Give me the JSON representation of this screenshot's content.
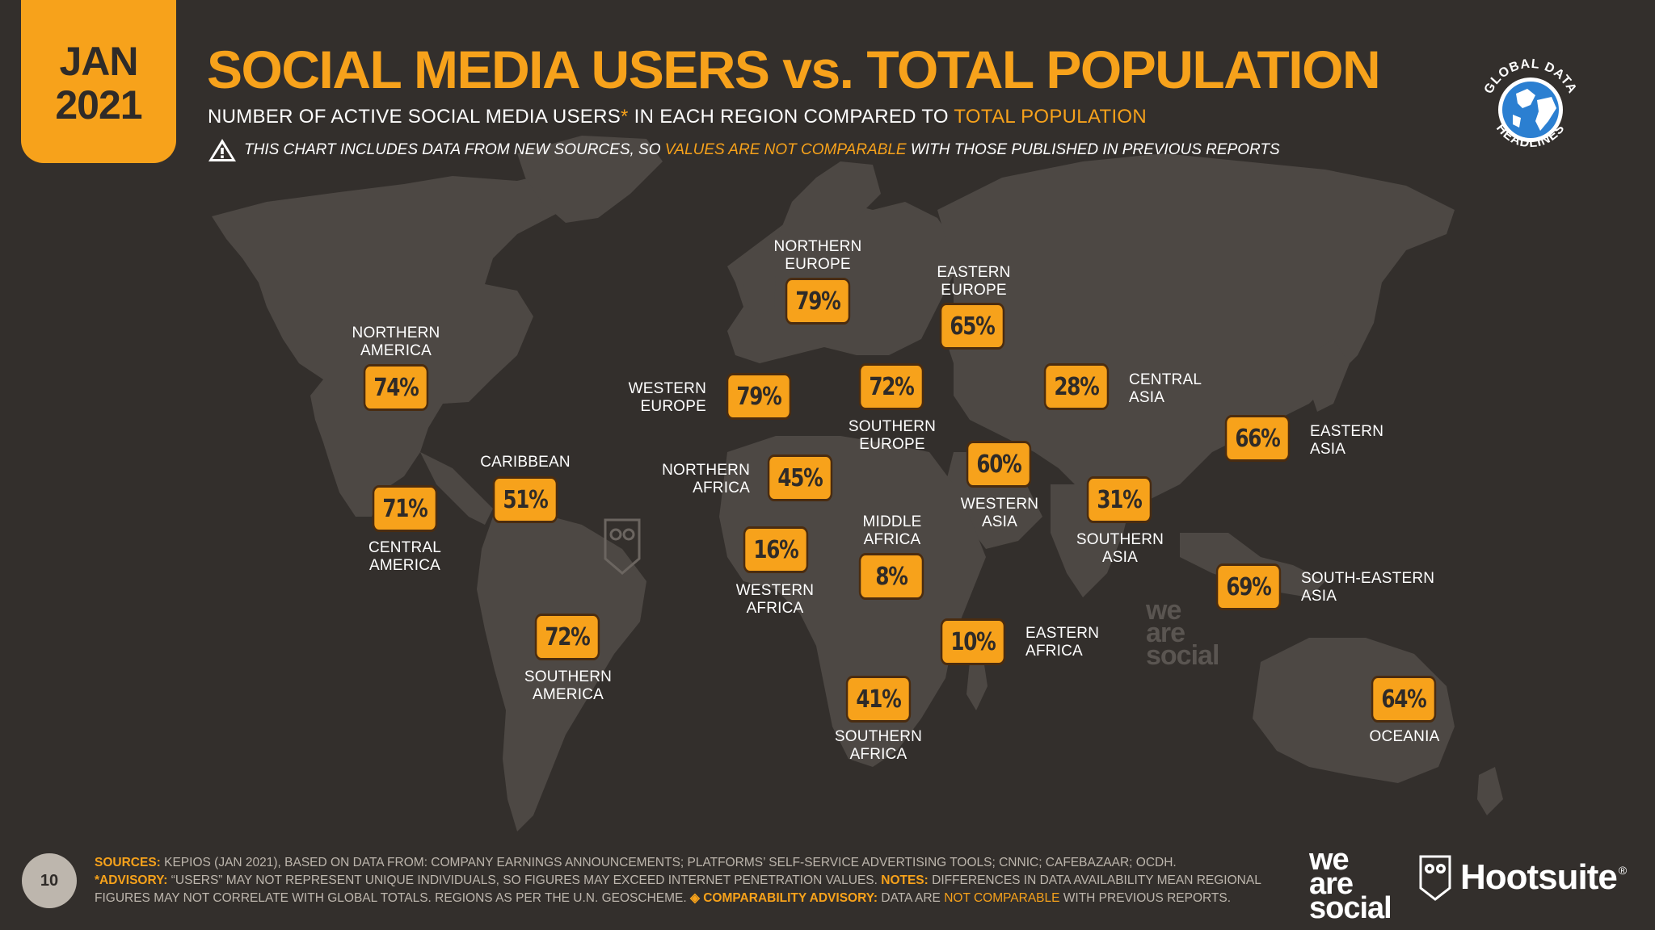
{
  "header": {
    "month": "JAN",
    "year": "2021",
    "title": "SOCIAL MEDIA USERS vs. TOTAL POPULATION",
    "subtitle_part1": "NUMBER OF ACTIVE SOCIAL MEDIA USERS",
    "subtitle_star": "*",
    "subtitle_part2": " IN EACH REGION COMPARED TO ",
    "subtitle_highlight": "TOTAL POPULATION",
    "warning_part1": "THIS CHART INCLUDES DATA FROM NEW SOURCES, SO ",
    "warning_highlight": "VALUES ARE NOT COMPARABLE",
    "warning_part2": " WITH THOSE PUBLISHED IN PREVIOUS REPORTS",
    "badge_top": "GLOBAL DATA",
    "badge_bottom": "HEADLINES"
  },
  "regions": [
    {
      "name": "NORTHERN\nAMERICA",
      "value": "74%"
    },
    {
      "name": "CENTRAL\nAMERICA",
      "value": "71%"
    },
    {
      "name": "CARIBBEAN",
      "value": "51%"
    },
    {
      "name": "SOUTHERN\nAMERICA",
      "value": "72%"
    },
    {
      "name": "NORTHERN\nEUROPE",
      "value": "79%"
    },
    {
      "name": "WESTERN\nEUROPE",
      "value": "79%"
    },
    {
      "name": "SOUTHERN\nEUROPE",
      "value": "72%"
    },
    {
      "name": "EASTERN\nEUROPE",
      "value": "65%"
    },
    {
      "name": "CENTRAL\nASIA",
      "value": "28%"
    },
    {
      "name": "NORTHERN\nAFRICA",
      "value": "45%"
    },
    {
      "name": "WESTERN\nAFRICA",
      "value": "16%"
    },
    {
      "name": "MIDDLE\nAFRICA",
      "value": "8%"
    },
    {
      "name": "EASTERN\nAFRICA",
      "value": "10%"
    },
    {
      "name": "SOUTHERN\nAFRICA",
      "value": "41%"
    },
    {
      "name": "WESTERN\nASIA",
      "value": "60%"
    },
    {
      "name": "SOUTHERN\nASIA",
      "value": "31%"
    },
    {
      "name": "EASTERN\nASIA",
      "value": "66%"
    },
    {
      "name": "SOUTH-EASTERN\nASIA",
      "value": "69%"
    },
    {
      "name": "OCEANIA",
      "value": "64%"
    }
  ],
  "footer": {
    "page_number": "10",
    "sources_key": "SOURCES:",
    "sources_text": " KEPIOS (JAN 2021), BASED ON DATA FROM: COMPANY EARNINGS ANNOUNCEMENTS; PLATFORMS’ SELF-SERVICE ADVERTISING TOOLS; CNNIC; CAFEBAZAAR; OCDH.",
    "advisory_key": "*ADVISORY:",
    "advisory_text": " “USERS” MAY NOT REPRESENT UNIQUE INDIVIDUALS, SO FIGURES MAY EXCEED INTERNET PENETRATION VALUES. ",
    "notes_key": "NOTES:",
    "notes_text": " DIFFERENCES IN DATA AVAILABILITY MEAN REGIONAL",
    "line3_text": "FIGURES MAY NOT CORRELATE WITH GLOBAL TOTALS. REGIONS AS PER THE U.N. GEOSCHEME. ",
    "comparability_key": "◈ COMPARABILITY ADVISORY:",
    "comparability_text1": " DATA ARE ",
    "comparability_highlight": "NOT COMPARABLE",
    "comparability_text2": " WITH PREVIOUS REPORTS."
  },
  "logos": {
    "watermark": "we\nare\nsocial",
    "was_logo": "we\nare\nsocial",
    "hootsuite": "Hootsuite",
    "hootsuite_mark": "®"
  },
  "colors": {
    "accent": "#f7a21b",
    "background": "#332f2c",
    "land": "#4e4945"
  },
  "icons": [
    "warning-icon",
    "globe-icon",
    "owl-icon"
  ]
}
